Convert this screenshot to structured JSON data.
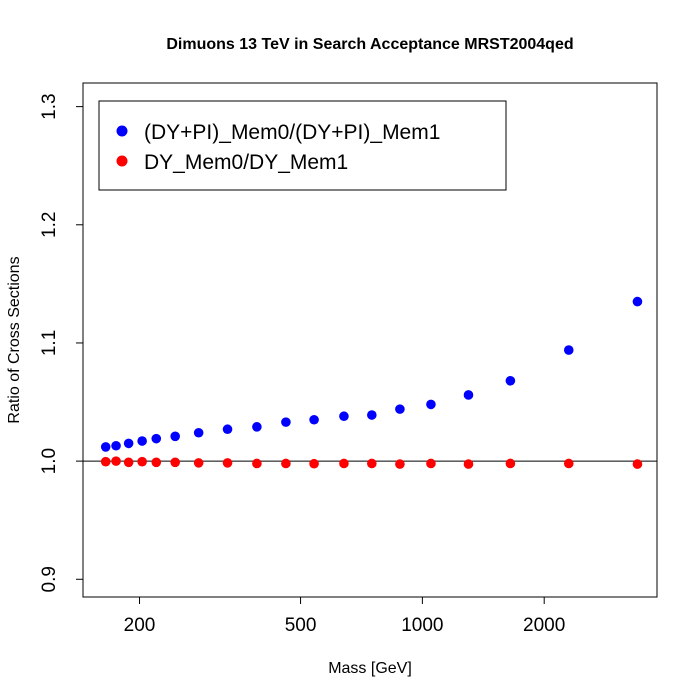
{
  "chart_data": {
    "type": "scatter",
    "title": "Dimuons 13 TeV in Search Acceptance MRST2004qed",
    "xlabel": "Mass [GeV]",
    "ylabel": "Ratio of Cross Sections",
    "x_scale": "log",
    "xlim": [
      145,
      3800
    ],
    "ylim": [
      0.885,
      1.32
    ],
    "x_ticks": [
      200,
      500,
      1000,
      2000
    ],
    "x_tick_labels": [
      "200",
      "500",
      "1000",
      "2000"
    ],
    "y_ticks": [
      0.9,
      1.0,
      1.1,
      1.2,
      1.3
    ],
    "y_tick_labels": [
      "0.9",
      "1.0",
      "1.1",
      "1.2",
      "1.3"
    ],
    "reference_line": 1.0,
    "legend_position": "top-left",
    "grid": false,
    "x": [
      165,
      175,
      188,
      203,
      220,
      245,
      280,
      330,
      390,
      460,
      540,
      640,
      750,
      880,
      1050,
      1300,
      1650,
      2300,
      3400
    ],
    "series": [
      {
        "name": "(DY+PI)_Mem0/(DY+PI)_Mem1",
        "color": "#0000ff",
        "values": [
          1.012,
          1.013,
          1.015,
          1.017,
          1.019,
          1.021,
          1.024,
          1.027,
          1.029,
          1.033,
          1.035,
          1.038,
          1.039,
          1.044,
          1.048,
          1.056,
          1.068,
          1.094,
          1.135
        ]
      },
      {
        "name": "DY_Mem0/DY_Mem1",
        "color": "#ff0000",
        "values": [
          0.9995,
          1.0,
          0.999,
          0.9995,
          0.999,
          0.999,
          0.9985,
          0.9985,
          0.998,
          0.998,
          0.9978,
          0.998,
          0.998,
          0.9975,
          0.998,
          0.9975,
          0.998,
          0.998,
          0.9975
        ]
      }
    ]
  }
}
